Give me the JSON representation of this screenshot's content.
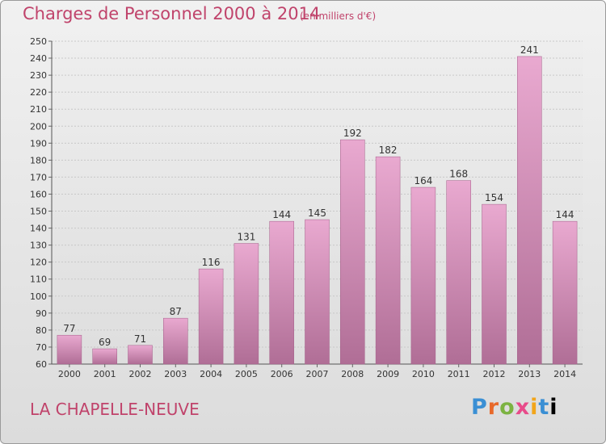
{
  "header": {
    "title": "Charges de Personnel 2000 à 2014",
    "subtitle": "(en milliers d'€)"
  },
  "footer": {
    "commune": "LA CHAPELLE-NEUVE",
    "logo": [
      "P",
      "r",
      "o",
      "x",
      "i",
      "t",
      "i"
    ]
  },
  "colors": {
    "title": "#c0436b",
    "bar_top": "#e9a9d0",
    "bar_bottom": "#b06e96",
    "grid": "#c8c8c8"
  },
  "chart_data": {
    "type": "bar",
    "categories": [
      "2000",
      "2001",
      "2002",
      "2003",
      "2004",
      "2005",
      "2006",
      "2007",
      "2008",
      "2009",
      "2010",
      "2011",
      "2012",
      "2013",
      "2014"
    ],
    "values": [
      77,
      69,
      71,
      87,
      116,
      131,
      144,
      145,
      192,
      182,
      164,
      168,
      154,
      241,
      144
    ],
    "ylim": [
      60,
      250
    ],
    "yticks": [
      60,
      70,
      80,
      90,
      100,
      110,
      120,
      130,
      140,
      150,
      160,
      170,
      180,
      190,
      200,
      210,
      220,
      230,
      240,
      250
    ],
    "grid": true
  }
}
